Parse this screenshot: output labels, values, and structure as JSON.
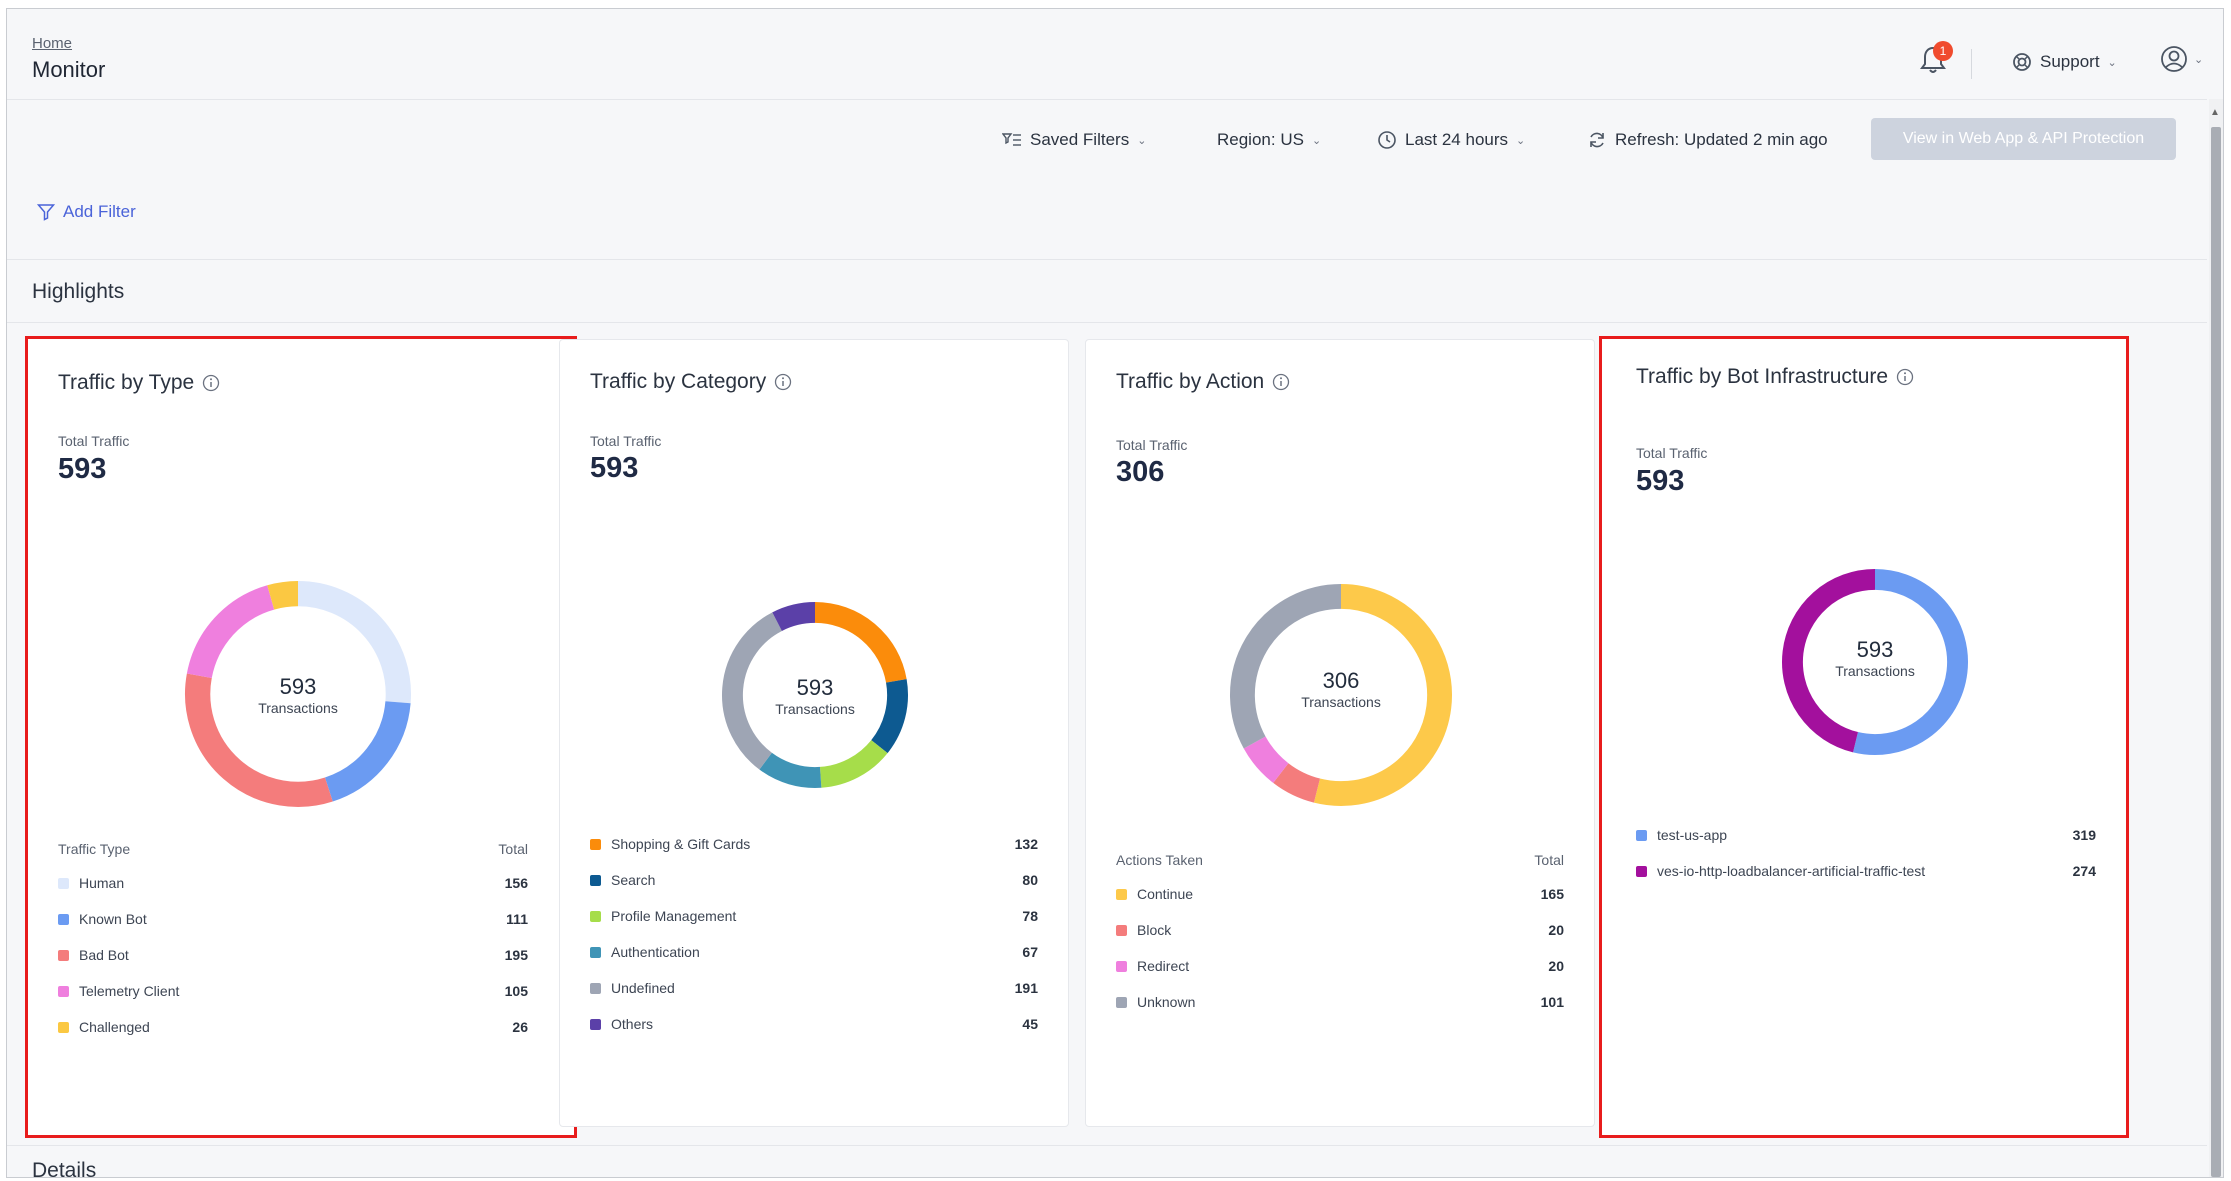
{
  "header": {
    "breadcrumb": "Home",
    "title": "Monitor",
    "notification_count": "1",
    "support_label": "Support"
  },
  "filters": {
    "saved_filters": "Saved Filters",
    "region": "Region: US",
    "time_range": "Last 24 hours",
    "refresh": "Refresh: Updated 2 min ago",
    "view_button": "View in Web App & API Protection",
    "add_filter": "Add Filter"
  },
  "highlights_title": "Highlights",
  "details_title": "Details",
  "colors": {
    "highlight_border": "#e81c1c",
    "accent": "#4a63d9"
  },
  "cards": [
    {
      "title": "Traffic by Type",
      "total_label": "Total Traffic",
      "total_value": "593",
      "center_value": "593",
      "center_label": "Transactions",
      "legend_header": "Traffic Type",
      "total_header": "Total",
      "highlighted": true,
      "items": [
        {
          "label": "Human",
          "value": 156,
          "color": "#dde8fb"
        },
        {
          "label": "Known Bot",
          "value": 111,
          "color": "#6b9bf2"
        },
        {
          "label": "Bad Bot",
          "value": 195,
          "color": "#f47c7c"
        },
        {
          "label": "Telemetry Client",
          "value": 105,
          "color": "#ef7fde"
        },
        {
          "label": "Challenged",
          "value": 26,
          "color": "#fbc842"
        }
      ]
    },
    {
      "title": "Traffic by Category",
      "total_label": "Total Traffic",
      "total_value": "593",
      "center_value": "593",
      "center_label": "Transactions",
      "legend_header": "",
      "total_header": "",
      "highlighted": false,
      "items": [
        {
          "label": "Shopping & Gift Cards",
          "value": 132,
          "color": "#fb8c0b"
        },
        {
          "label": "Search",
          "value": 80,
          "color": "#0d5a91"
        },
        {
          "label": "Profile Management",
          "value": 78,
          "color": "#a6dd4a"
        },
        {
          "label": "Authentication",
          "value": 67,
          "color": "#3f94b6"
        },
        {
          "label": "Undefined",
          "value": 191,
          "color": "#9ea5b4"
        },
        {
          "label": "Others",
          "value": 45,
          "color": "#5b40a8"
        }
      ]
    },
    {
      "title": "Traffic by Action",
      "total_label": "Total Traffic",
      "total_value": "306",
      "center_value": "306",
      "center_label": "Transactions",
      "legend_header": "Actions Taken",
      "total_header": "Total",
      "highlighted": false,
      "items": [
        {
          "label": "Continue",
          "value": 165,
          "color": "#fdc94a"
        },
        {
          "label": "Block",
          "value": 20,
          "color": "#f47c7c"
        },
        {
          "label": "Redirect",
          "value": 20,
          "color": "#ef7fde"
        },
        {
          "label": "Unknown",
          "value": 101,
          "color": "#9ea5b4"
        }
      ]
    },
    {
      "title": "Traffic by Bot Infrastructure",
      "total_label": "Total Traffic",
      "total_value": "593",
      "center_value": "593",
      "center_label": "Transactions",
      "legend_header": "",
      "total_header": "",
      "highlighted": true,
      "items": [
        {
          "label": "test-us-app",
          "value": 319,
          "color": "#6b9bf2"
        },
        {
          "label": "ves-io-http-loadbalancer-artificial-traffic-test",
          "value": 274,
          "color": "#a3109d"
        }
      ]
    }
  ]
}
